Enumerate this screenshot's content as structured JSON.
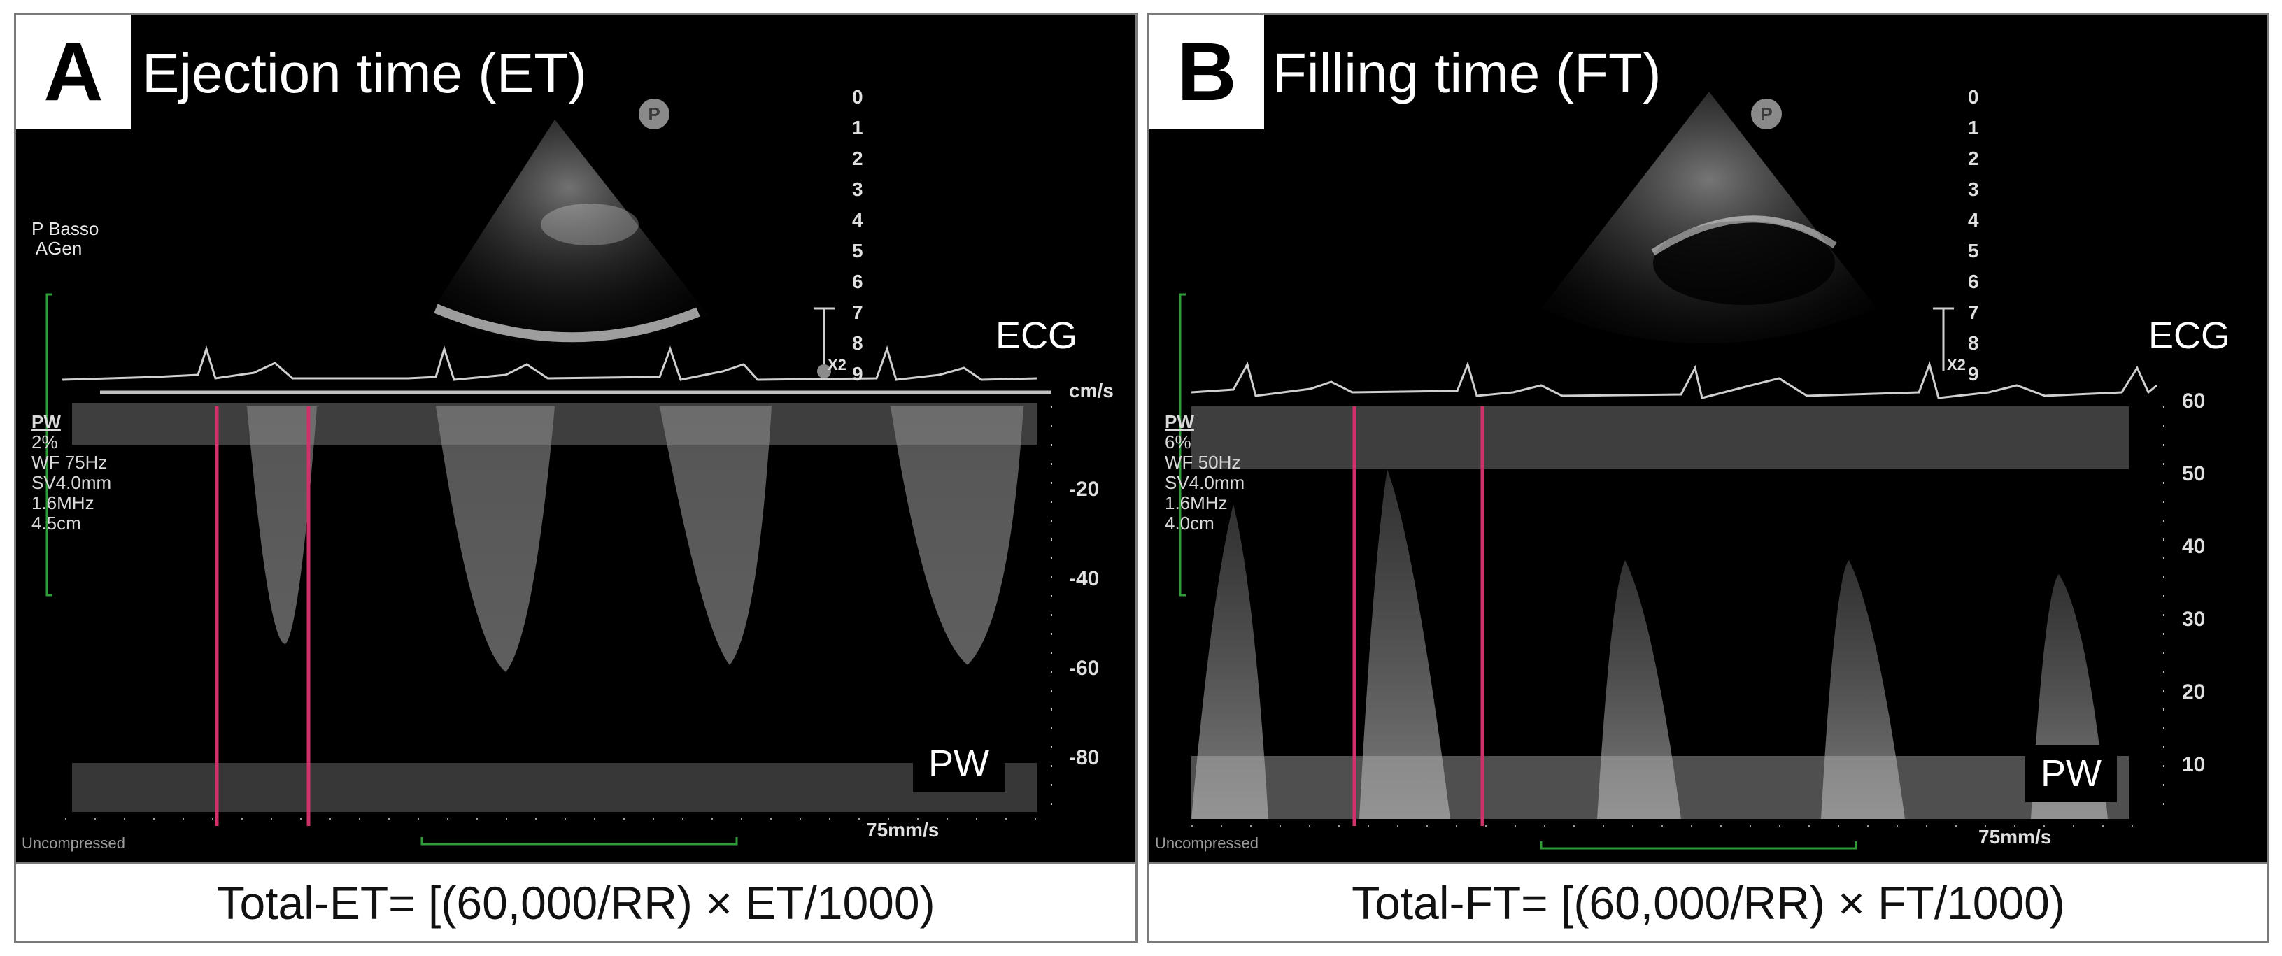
{
  "panels": [
    {
      "letter": "A",
      "title": "Ejection time (ET)",
      "badge": "P",
      "info_left": "P Basso\n AGen",
      "pw_params": [
        "PW",
        "2%",
        "WF  75Hz",
        "SV4.0mm",
        "1.6MHz",
        "4.5cm"
      ],
      "ecg_label": "ECG",
      "pw_label": "PW",
      "zoom_label": "X2",
      "velocity_unit": "cm/s",
      "velocity_ticks": [
        "-20",
        "-40",
        "-60",
        "-80"
      ],
      "depth_ticks": [
        "0",
        "1",
        "2",
        "3",
        "4",
        "5",
        "6",
        "7",
        "8",
        "9"
      ],
      "sweep_speed": "75mm/s",
      "uncompressed": "Uncompressed",
      "formula": "Total-ET= [(60,000/RR) × ET/1000)",
      "marker_color": "#d2306a"
    },
    {
      "letter": "B",
      "title": "Filling time (FT)",
      "badge": "P",
      "pw_params": [
        "PW",
        "6%",
        "WF  50Hz",
        "SV4.0mm",
        "1.6MHz",
        "4.0cm"
      ],
      "ecg_label": "ECG",
      "pw_label": "PW",
      "zoom_label": "X2",
      "velocity_ticks": [
        "60",
        "50",
        "40",
        "30",
        "20",
        "10"
      ],
      "depth_ticks": [
        "0",
        "1",
        "2",
        "3",
        "4",
        "5",
        "6",
        "7",
        "8",
        "9"
      ],
      "sweep_speed": "75mm/s",
      "uncompressed": "Uncompressed",
      "formula": "Total-FT= [(60,000/RR) × FT/1000)",
      "marker_color": "#d2306a"
    }
  ]
}
